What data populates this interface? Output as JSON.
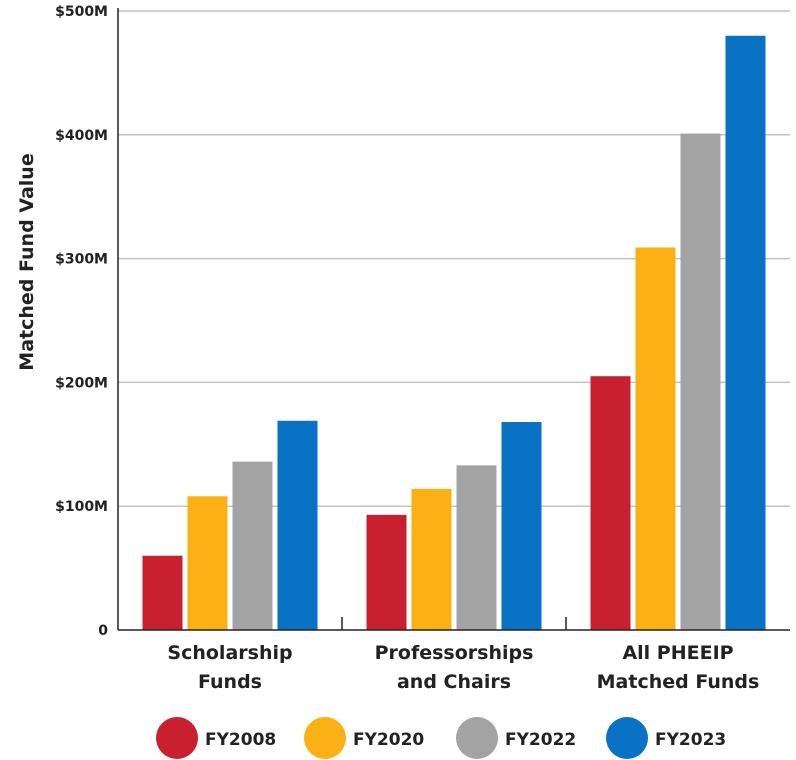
{
  "chart_data": {
    "type": "bar",
    "ylabel": "Matched Fund Value",
    "xlabel": "",
    "ylim": [
      0,
      500
    ],
    "y_ticks": [
      {
        "value": 0,
        "label": "0"
      },
      {
        "value": 100,
        "label": "$100M"
      },
      {
        "value": 200,
        "label": "$200M"
      },
      {
        "value": 300,
        "label": "$300M"
      },
      {
        "value": 400,
        "label": "$400M"
      },
      {
        "value": 500,
        "label": "$500M"
      }
    ],
    "grid": true,
    "legend_position": "bottom",
    "categories": [
      {
        "lines": [
          "Scholarship",
          "Funds"
        ]
      },
      {
        "lines": [
          "Professorships",
          "and Chairs"
        ]
      },
      {
        "lines": [
          "All PHEEIP",
          "Matched Funds"
        ]
      }
    ],
    "series": [
      {
        "name": "FY2008",
        "color": "#c8202f",
        "values": [
          60,
          93,
          205
        ]
      },
      {
        "name": "FY2020",
        "color": "#fbb116",
        "values": [
          108,
          114,
          309
        ]
      },
      {
        "name": "FY2022",
        "color": "#a3a3a3",
        "values": [
          136,
          133,
          401
        ]
      },
      {
        "name": "FY2023",
        "color": "#0a72c4",
        "values": [
          169,
          168,
          480
        ]
      }
    ]
  }
}
